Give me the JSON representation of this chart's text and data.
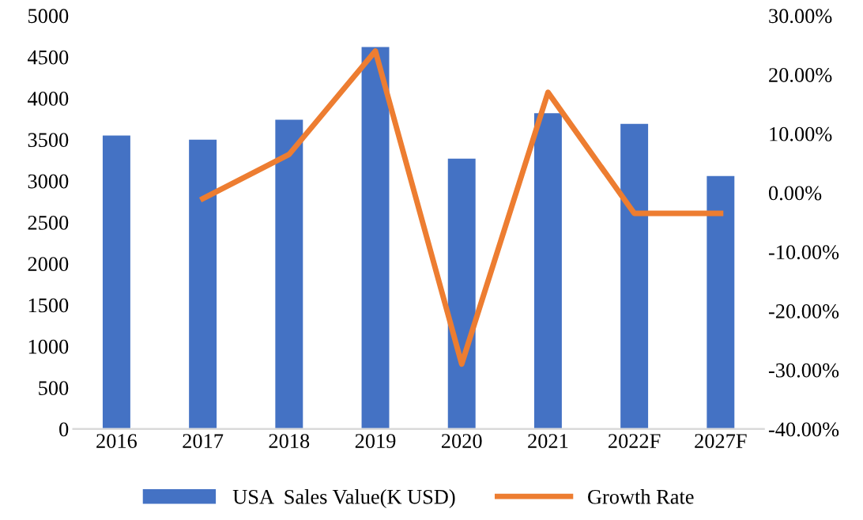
{
  "chart_data": {
    "type": "bar",
    "categories": [
      "2016",
      "2017",
      "2018",
      "2019",
      "2020",
      "2021",
      "2022F",
      "2027F"
    ],
    "series": [
      {
        "name": "USA  Sales Value(K USD)",
        "color": "#4472c4",
        "values": [
          3550,
          3500,
          3740,
          4620,
          3270,
          3820,
          3690,
          3060
        ]
      },
      {
        "name": "Growth Rate",
        "type": "line",
        "axis": "y2",
        "color": "#ed7d31",
        "values": [
          null,
          -1.0,
          6.5,
          24.0,
          -29.0,
          17.0,
          -3.5,
          -3.5
        ]
      }
    ],
    "ylim": [
      0,
      5000
    ],
    "yticks": [
      0,
      500,
      1000,
      1500,
      2000,
      2500,
      3000,
      3500,
      4000,
      4500,
      5000
    ],
    "y2lim": [
      -40,
      30
    ],
    "y2ticks": [
      {
        "value": -40,
        "label": "-40.00%"
      },
      {
        "value": -30,
        "label": "-30.00%"
      },
      {
        "value": -20,
        "label": "-20.00%"
      },
      {
        "value": -10,
        "label": "-10.00%"
      },
      {
        "value": 0,
        "label": "0.00%"
      },
      {
        "value": 10,
        "label": "10.00%"
      },
      {
        "value": 20,
        "label": "20.00%"
      },
      {
        "value": 30,
        "label": "30.00%"
      }
    ],
    "legend": "bottom",
    "grid": false
  }
}
